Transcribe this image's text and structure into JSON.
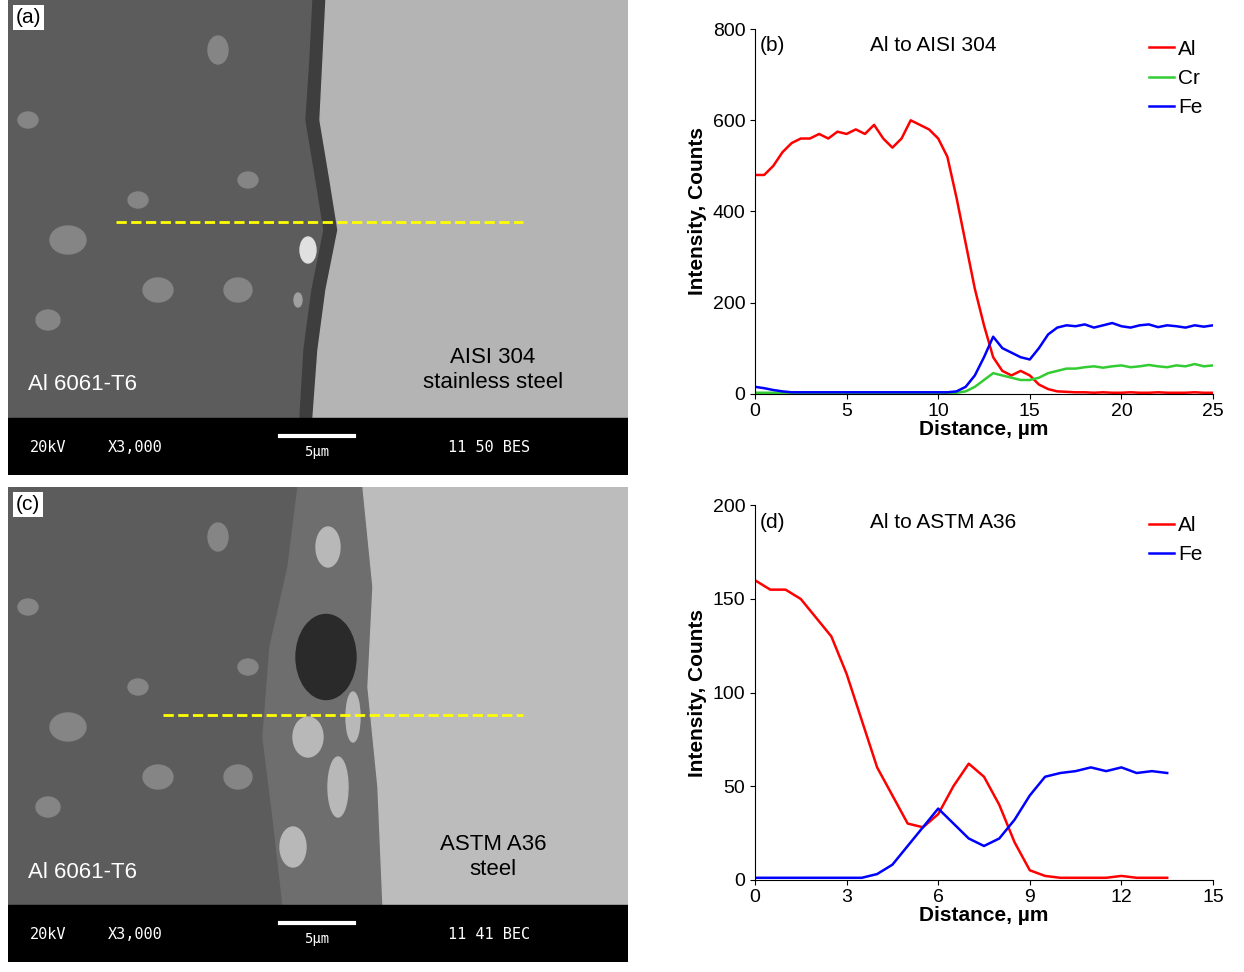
{
  "images": [
    {
      "label": "(a)",
      "left_material": "Al 6061-T6",
      "right_material": "AISI 304\nstainless steel",
      "footer": [
        "20kV",
        "X3,000",
        "5µm",
        "11 50 BES"
      ]
    },
    {
      "label": "(c)",
      "left_material": "Al 6061-T6",
      "right_material": "ASTM A36\nsteel",
      "footer": [
        "20kV",
        "X3,000",
        "5µm",
        "11 41 BEC"
      ]
    }
  ],
  "chart_data": [
    {
      "type": "line",
      "label": "(b)",
      "title": "Al to AISI 304",
      "x_label": "Distance, µm",
      "y_label": "Intensity, Counts",
      "x": [
        0,
        0.5,
        1,
        1.5,
        2,
        2.5,
        3,
        3.5,
        4,
        4.5,
        5,
        5.5,
        6,
        6.5,
        7,
        7.5,
        8,
        8.5,
        9,
        9.5,
        10,
        10.5,
        11,
        11.5,
        12,
        12.5,
        13,
        13.5,
        14,
        14.5,
        15,
        15.5,
        16,
        16.5,
        17,
        17.5,
        18,
        18.5,
        19,
        19.5,
        20,
        20.5,
        21,
        21.5,
        22,
        22.5,
        23,
        23.5,
        24,
        24.5,
        25
      ],
      "series": [
        {
          "name": "Al",
          "color": "#ff0000",
          "values": [
            480,
            480,
            500,
            530,
            550,
            560,
            560,
            570,
            560,
            575,
            570,
            580,
            570,
            590,
            560,
            540,
            560,
            600,
            590,
            580,
            560,
            520,
            430,
            330,
            230,
            150,
            80,
            50,
            40,
            50,
            40,
            20,
            10,
            5,
            4,
            3,
            3,
            2,
            3,
            2,
            2,
            3,
            2,
            2,
            3,
            2,
            2,
            2,
            3,
            2,
            2
          ]
        },
        {
          "name": "Cr",
          "color": "#33cc33",
          "values": [
            2,
            2,
            2,
            2,
            2,
            2,
            2,
            2,
            2,
            2,
            2,
            2,
            2,
            2,
            2,
            2,
            2,
            2,
            2,
            2,
            2,
            2,
            2,
            5,
            15,
            30,
            45,
            40,
            35,
            30,
            30,
            35,
            45,
            50,
            55,
            55,
            58,
            60,
            57,
            60,
            62,
            58,
            60,
            63,
            60,
            58,
            62,
            60,
            65,
            60,
            62
          ]
        },
        {
          "name": "Fe",
          "color": "#0000ff",
          "values": [
            15,
            12,
            8,
            5,
            3,
            3,
            3,
            3,
            3,
            3,
            3,
            3,
            3,
            3,
            3,
            3,
            3,
            3,
            3,
            3,
            3,
            3,
            5,
            15,
            40,
            80,
            125,
            100,
            90,
            80,
            75,
            100,
            130,
            145,
            150,
            148,
            152,
            145,
            150,
            155,
            148,
            145,
            150,
            152,
            146,
            150,
            148,
            145,
            150,
            147,
            150
          ]
        }
      ],
      "xlim": [
        0,
        25
      ],
      "xticks": [
        0,
        5,
        10,
        15,
        20,
        25
      ],
      "ylim": [
        0,
        800
      ],
      "yticks": [
        0,
        200,
        400,
        600,
        800
      ],
      "legend": "upper right"
    },
    {
      "type": "line",
      "label": "(d)",
      "title": "Al to ASTM A36",
      "x_label": "Distance, µm",
      "y_label": "Intensity, Counts",
      "x": [
        0,
        0.5,
        1,
        1.5,
        2,
        2.5,
        3,
        3.5,
        4,
        4.5,
        5,
        5.5,
        6,
        6.5,
        7,
        7.5,
        8,
        8.5,
        9,
        9.5,
        10,
        10.5,
        11,
        11.5,
        12,
        12.5,
        13,
        13.5
      ],
      "series": [
        {
          "name": "Al",
          "color": "#ff0000",
          "values": [
            160,
            155,
            155,
            150,
            140,
            130,
            110,
            85,
            60,
            45,
            30,
            28,
            35,
            50,
            62,
            55,
            40,
            20,
            5,
            2,
            1,
            1,
            1,
            1,
            2,
            1,
            1,
            1
          ]
        },
        {
          "name": "Fe",
          "color": "#0000ff",
          "values": [
            1,
            1,
            1,
            1,
            1,
            1,
            1,
            1,
            3,
            8,
            18,
            28,
            38,
            30,
            22,
            18,
            22,
            32,
            45,
            55,
            57,
            58,
            60,
            58,
            60,
            57,
            58,
            57
          ]
        }
      ],
      "xlim": [
        0,
        15
      ],
      "xticks": [
        0,
        3,
        6,
        9,
        12,
        15
      ],
      "ylim": [
        0,
        200
      ],
      "yticks": [
        0,
        50,
        100,
        150,
        200
      ],
      "legend": "upper right"
    }
  ]
}
